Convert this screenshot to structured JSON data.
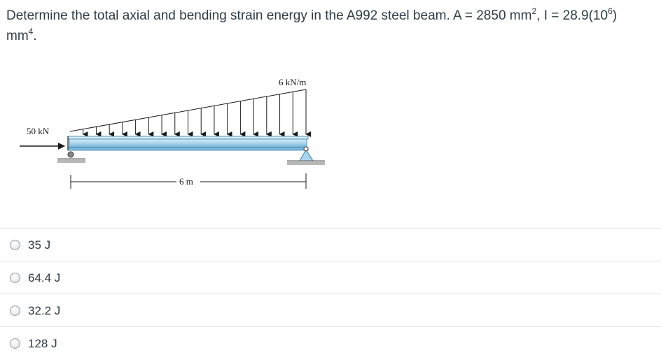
{
  "question": {
    "text_1": "Determine the total axial and bending strain energy in the A992 steel beam. A = 2850 mm",
    "sup_1": "2",
    "text_2": ", I = 28.9(10",
    "sup_2": "6",
    "text_3": ")",
    "text_4": "mm",
    "sup_3": "4",
    "text_5": "."
  },
  "figure": {
    "load_label": "6 kN/m",
    "force_label": "50 kN",
    "length_label": "6 m",
    "beam_color": "#aad4ec",
    "beam_edge_color": "#3c7fa8"
  },
  "answers": [
    {
      "label": "35 J"
    },
    {
      "label": "64.4 J"
    },
    {
      "label": "32.2 J"
    },
    {
      "label": "128 J"
    }
  ]
}
